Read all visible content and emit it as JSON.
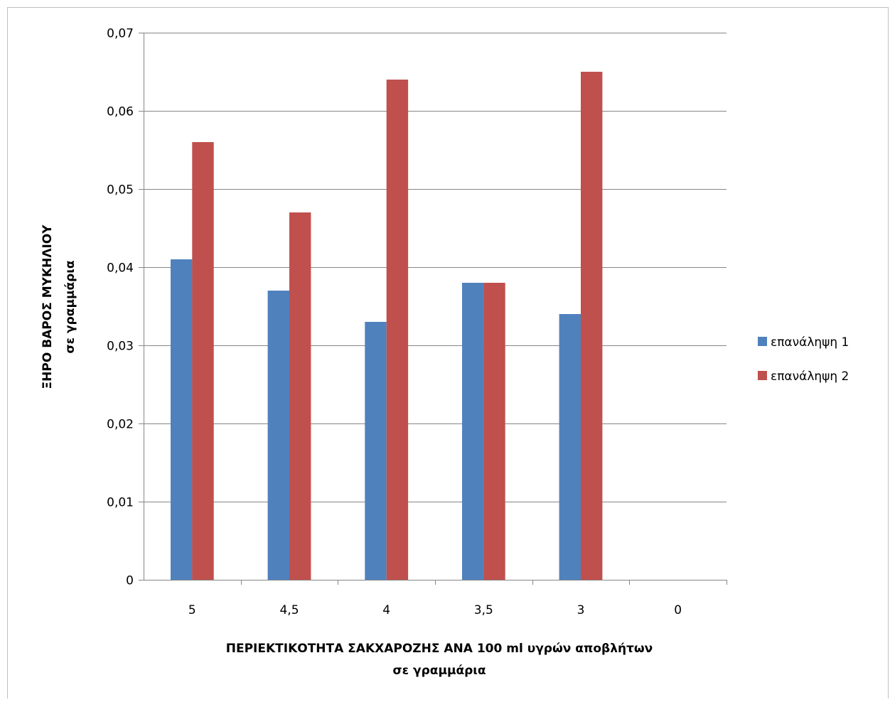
{
  "chart_data": {
    "type": "bar",
    "title": "",
    "xlabel": [
      "ΠΕΡΙΕΚΤΙΚΟΤΗΤΑ ΣΑΚΧΑΡΟΖΗΣ ΑΝΑ 100 ml υγρών αποβλήτων",
      "σε γραμμάρια"
    ],
    "ylabel": [
      "ΞΗΡΟ  ΒΑΡΟΣ ΜΥΚΗΛΙΟΥ",
      "σε γραμμάρια"
    ],
    "categories": [
      "5",
      "4,5",
      "4",
      "3,5",
      "3",
      "0"
    ],
    "series": [
      {
        "name": "επανάληψη 1",
        "color": "#4F81BD",
        "values": [
          0.041,
          0.037,
          0.033,
          0.038,
          0.034,
          0
        ]
      },
      {
        "name": "επανάληψη 2",
        "color": "#C0504D",
        "values": [
          0.056,
          0.047,
          0.064,
          0.038,
          0.065,
          0
        ]
      }
    ],
    "ylim": [
      0,
      0.07
    ],
    "yticks": [
      "0",
      "0,01",
      "0,02",
      "0,03",
      "0,04",
      "0,05",
      "0,06",
      "0,07"
    ],
    "grid": true,
    "legend_position": "right"
  }
}
